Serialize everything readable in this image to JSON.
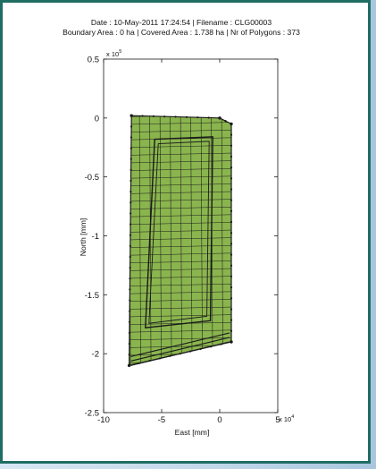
{
  "header": {
    "line1": "Date : 10-May-2011 17:24:54  |  Filename : CLG00003",
    "line2": "Boundary Area : 0 ha  |  Covered Area : 1.738 ha  |  Nr of Polygons : 373"
  },
  "colors": {
    "frame_border": "#1f6d63",
    "polygon_fill": "#8ab54e",
    "polygon_edge": "#1a1a1a"
  },
  "chart_data": {
    "type": "scatter",
    "xlabel": "East [mm]",
    "ylabel": "North [mm]",
    "x_multiplier": "x 10",
    "x_multiplier_exp": "4",
    "y_multiplier": "x 10",
    "y_multiplier_exp": "5",
    "xlim": [
      -10,
      5
    ],
    "ylim": [
      -2.5,
      0.5
    ],
    "xticks": [
      {
        "value": -10,
        "label": "-10"
      },
      {
        "value": -5,
        "label": "-5"
      },
      {
        "value": 0,
        "label": "0"
      },
      {
        "value": 5,
        "label": "5"
      }
    ],
    "yticks": [
      {
        "value": 0.5,
        "label": "0.5"
      },
      {
        "value": 0,
        "label": "0"
      },
      {
        "value": -0.5,
        "label": "-0.5"
      },
      {
        "value": -1,
        "label": "-1"
      },
      {
        "value": -1.5,
        "label": "-1.5"
      },
      {
        "value": -2,
        "label": "-2"
      },
      {
        "value": -2.5,
        "label": "-2.5"
      }
    ],
    "covered_region_outline": [
      [
        -7.6,
        0.02
      ],
      [
        0.0,
        0.0
      ],
      [
        1.0,
        -0.05
      ],
      [
        1.0,
        -1.9
      ],
      [
        -7.8,
        -2.1
      ]
    ],
    "inner_loop_outline": [
      [
        -5.6,
        -0.18
      ],
      [
        -0.6,
        -0.16
      ],
      [
        -0.8,
        -1.72
      ],
      [
        -6.4,
        -1.78
      ]
    ]
  }
}
